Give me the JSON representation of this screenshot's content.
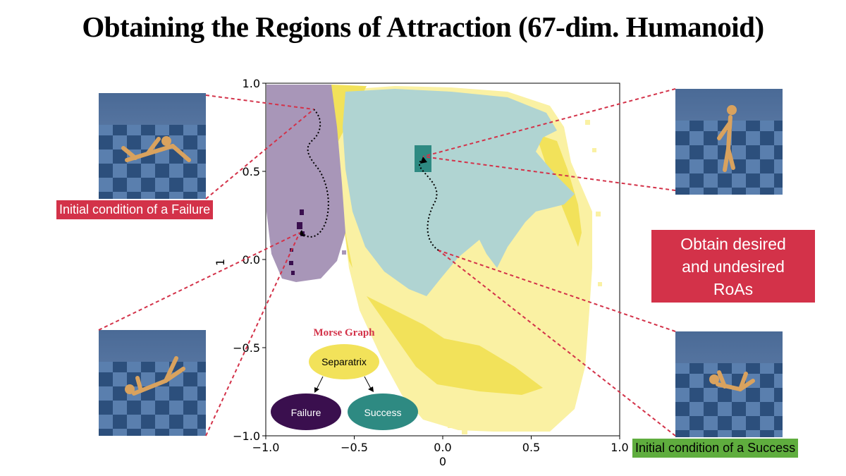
{
  "slide": {
    "title": "Obtaining the Regions of Attraction (67-dim. Humanoid)"
  },
  "labels": {
    "failure_init": "Initial condition of a Failure",
    "success_init": "Initial condition of a Success",
    "callout": [
      "Obtain desired",
      "and undesired",
      "RoAs"
    ]
  },
  "colors": {
    "failure_region": "#a896b8",
    "separatrix_region": "#f2e25a",
    "light_yellow": "#faf1a3",
    "success_region": "#b0d4d2",
    "attractor_success": "#2e8a82",
    "attractor_failure": "#3a0f4e",
    "dotted_lines": "#d33249"
  },
  "chart_data": {
    "type": "heatmap",
    "description_axes": "2D latent projection of regions of attraction",
    "xlabel": "0",
    "ylabel": "1",
    "xlim": [
      -1.0,
      1.0
    ],
    "ylim": [
      -1.0,
      1.0
    ],
    "xticks": [
      -1.0,
      -0.5,
      0.0,
      0.5,
      1.0
    ],
    "xtick_labels": [
      "−1.0",
      "−0.5",
      "0.0",
      "0.5",
      "1.0"
    ],
    "yticks": [
      1.0,
      0.5,
      0.0,
      -0.5,
      -1.0
    ],
    "ytick_labels": [
      "1.0",
      "0.5",
      "0.0",
      "−0.5",
      "−1.0"
    ],
    "regions": [
      {
        "name": "Failure",
        "color": "#a896b8"
      },
      {
        "name": "Separatrix",
        "color": "#f2e25a"
      },
      {
        "name": "Success",
        "color": "#b0d4d2"
      }
    ],
    "attractors": [
      {
        "name": "Success attractor",
        "x": -0.11,
        "y": 0.58
      },
      {
        "name": "Failure attractor",
        "x": -0.81,
        "y": 0.18
      }
    ]
  },
  "morse_graph": {
    "title": "Morse Graph",
    "nodes": [
      {
        "id": "separatrix",
        "label": "Separatrix",
        "color": "#f2e25a",
        "text_color": "#000000"
      },
      {
        "id": "failure",
        "label": "Failure",
        "color": "#3a0f4e",
        "text_color": "#ffffff"
      },
      {
        "id": "success",
        "label": "Success",
        "color": "#2e8a82",
        "text_color": "#ffffff"
      }
    ],
    "edges": [
      {
        "from": "separatrix",
        "to": "failure"
      },
      {
        "from": "separatrix",
        "to": "success"
      }
    ]
  },
  "thumbnails": [
    {
      "name": "humanoid-failure-init",
      "pose": "lying"
    },
    {
      "name": "humanoid-failure-final",
      "pose": "fallen"
    },
    {
      "name": "humanoid-success-final",
      "pose": "standing"
    },
    {
      "name": "humanoid-success-init",
      "pose": "fallen"
    }
  ]
}
